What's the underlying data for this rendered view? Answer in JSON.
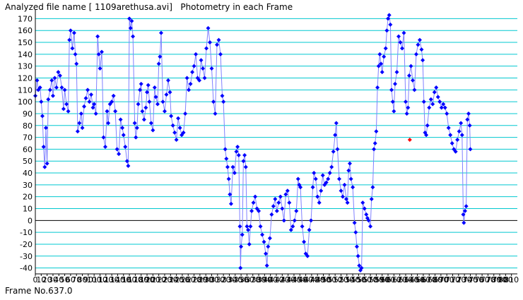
{
  "header": {
    "title": "Analyzed file name [ 1109arethusa.avi]   Photometry in each Frame"
  },
  "footer": {
    "frame_readout": "Frame No.637.0"
  },
  "colors": {
    "grid": "#00c8d0",
    "zero_line": "#000000",
    "series_line": "#8080ff",
    "marker": "#0000ff",
    "highlight_marker": "#ff0000",
    "axis": "#000000"
  },
  "chart_data": {
    "type": "scatter",
    "title": "",
    "xlabel": "",
    "ylabel": "",
    "xlim": [
      0,
      820
    ],
    "ylim": [
      -45,
      175
    ],
    "grid": true,
    "x_ticks": [
      0,
      10,
      20,
      30,
      40,
      50,
      60,
      70,
      80,
      90,
      100,
      110,
      120,
      130,
      140,
      150,
      160,
      170,
      180,
      190,
      200,
      210,
      220,
      230,
      240,
      250,
      260,
      270,
      280,
      290,
      300,
      310,
      320,
      330,
      340,
      350,
      360,
      370,
      380,
      390,
      400,
      410,
      420,
      430,
      440,
      450,
      460,
      470,
      480,
      490,
      500,
      510,
      520,
      530,
      540,
      550,
      560,
      570,
      580,
      590,
      600,
      610,
      620,
      630,
      640,
      650,
      660,
      670,
      680,
      690,
      700,
      710,
      720,
      730,
      740,
      750,
      760,
      770,
      780,
      790,
      800,
      810
    ],
    "y_ticks": [
      -40,
      -30,
      -20,
      -10,
      0,
      10,
      20,
      30,
      40,
      50,
      60,
      70,
      80,
      90,
      100,
      110,
      120,
      130,
      140,
      150,
      160,
      170
    ],
    "series": [
      {
        "points": [
          [
            0,
            105
          ],
          [
            3,
            118
          ],
          [
            5,
            110
          ],
          [
            8,
            112
          ],
          [
            10,
            100
          ],
          [
            12,
            88
          ],
          [
            14,
            62
          ],
          [
            16,
            45
          ],
          [
            18,
            78
          ],
          [
            20,
            48
          ],
          [
            22,
            102
          ],
          [
            25,
            110
          ],
          [
            28,
            118
          ],
          [
            30,
            105
          ],
          [
            33,
            120
          ],
          [
            36,
            112
          ],
          [
            39,
            125
          ],
          [
            42,
            122
          ],
          [
            45,
            112
          ],
          [
            48,
            94
          ],
          [
            50,
            110
          ],
          [
            53,
            98
          ],
          [
            56,
            92
          ],
          [
            58,
            152
          ],
          [
            60,
            160
          ],
          [
            63,
            145
          ],
          [
            66,
            158
          ],
          [
            68,
            140
          ],
          [
            70,
            132
          ],
          [
            72,
            75
          ],
          [
            75,
            82
          ],
          [
            78,
            90
          ],
          [
            80,
            78
          ],
          [
            83,
            96
          ],
          [
            86,
            103
          ],
          [
            89,
            110
          ],
          [
            92,
            100
          ],
          [
            95,
            106
          ],
          [
            98,
            95
          ],
          [
            100,
            98
          ],
          [
            103,
            90
          ],
          [
            106,
            155
          ],
          [
            108,
            140
          ],
          [
            110,
            128
          ],
          [
            113,
            142
          ],
          [
            116,
            70
          ],
          [
            119,
            62
          ],
          [
            122,
            92
          ],
          [
            124,
            82
          ],
          [
            127,
            98
          ],
          [
            130,
            100
          ],
          [
            133,
            105
          ],
          [
            136,
            92
          ],
          [
            139,
            60
          ],
          [
            142,
            56
          ],
          [
            145,
            85
          ],
          [
            148,
            78
          ],
          [
            150,
            72
          ],
          [
            153,
            62
          ],
          [
            156,
            50
          ],
          [
            158,
            46
          ],
          [
            160,
            170
          ],
          [
            162,
            162
          ],
          [
            164,
            168
          ],
          [
            166,
            155
          ],
          [
            169,
            82
          ],
          [
            171,
            70
          ],
          [
            173,
            78
          ],
          [
            175,
            98
          ],
          [
            178,
            110
          ],
          [
            180,
            115
          ],
          [
            182,
            92
          ],
          [
            185,
            85
          ],
          [
            188,
            95
          ],
          [
            190,
            108
          ],
          [
            192,
            114
          ],
          [
            194,
            100
          ],
          [
            197,
            82
          ],
          [
            200,
            76
          ],
          [
            203,
            112
          ],
          [
            205,
            104
          ],
          [
            208,
            98
          ],
          [
            210,
            132
          ],
          [
            212,
            138
          ],
          [
            214,
            158
          ],
          [
            217,
            100
          ],
          [
            220,
            92
          ],
          [
            223,
            106
          ],
          [
            226,
            118
          ],
          [
            229,
            108
          ],
          [
            231,
            88
          ],
          [
            234,
            80
          ],
          [
            237,
            74
          ],
          [
            240,
            68
          ],
          [
            243,
            86
          ],
          [
            246,
            78
          ],
          [
            249,
            72
          ],
          [
            252,
            74
          ],
          [
            255,
            90
          ],
          [
            258,
            120
          ],
          [
            261,
            110
          ],
          [
            264,
            115
          ],
          [
            267,
            125
          ],
          [
            270,
            130
          ],
          [
            273,
            140
          ],
          [
            276,
            120
          ],
          [
            279,
            118
          ],
          [
            282,
            135
          ],
          [
            285,
            128
          ],
          [
            288,
            120
          ],
          [
            291,
            145
          ],
          [
            294,
            162
          ],
          [
            297,
            150
          ],
          [
            300,
            128
          ],
          [
            303,
            100
          ],
          [
            306,
            90
          ],
          [
            309,
            148
          ],
          [
            312,
            152
          ],
          [
            315,
            140
          ],
          [
            318,
            105
          ],
          [
            320,
            100
          ],
          [
            323,
            60
          ],
          [
            325,
            52
          ],
          [
            327,
            45
          ],
          [
            329,
            35
          ],
          [
            331,
            22
          ],
          [
            333,
            14
          ],
          [
            336,
            45
          ],
          [
            339,
            40
          ],
          [
            342,
            58
          ],
          [
            344,
            62
          ],
          [
            346,
            55
          ],
          [
            348,
            -5
          ],
          [
            349,
            -40
          ],
          [
            350,
            -22
          ],
          [
            352,
            -12
          ],
          [
            354,
            50
          ],
          [
            356,
            55
          ],
          [
            358,
            45
          ],
          [
            360,
            -5
          ],
          [
            362,
            -8
          ],
          [
            364,
            -20
          ],
          [
            366,
            -5
          ],
          [
            368,
            8
          ],
          [
            371,
            15
          ],
          [
            374,
            20
          ],
          [
            377,
            10
          ],
          [
            380,
            8
          ],
          [
            383,
            -5
          ],
          [
            386,
            -12
          ],
          [
            389,
            -18
          ],
          [
            392,
            -28
          ],
          [
            394,
            -38
          ],
          [
            396,
            -22
          ],
          [
            399,
            -15
          ],
          [
            402,
            5
          ],
          [
            405,
            12
          ],
          [
            408,
            18
          ],
          [
            411,
            8
          ],
          [
            414,
            15
          ],
          [
            417,
            20
          ],
          [
            420,
            10
          ],
          [
            423,
            0
          ],
          [
            426,
            22
          ],
          [
            429,
            25
          ],
          [
            432,
            15
          ],
          [
            435,
            -8
          ],
          [
            438,
            -5
          ],
          [
            441,
            0
          ],
          [
            444,
            8
          ],
          [
            447,
            35
          ],
          [
            449,
            30
          ],
          [
            451,
            28
          ],
          [
            454,
            -5
          ],
          [
            457,
            -18
          ],
          [
            460,
            -28
          ],
          [
            463,
            -30
          ],
          [
            466,
            -8
          ],
          [
            469,
            0
          ],
          [
            472,
            28
          ],
          [
            474,
            40
          ],
          [
            477,
            35
          ],
          [
            480,
            20
          ],
          [
            483,
            15
          ],
          [
            486,
            25
          ],
          [
            489,
            38
          ],
          [
            492,
            30
          ],
          [
            495,
            32
          ],
          [
            498,
            35
          ],
          [
            501,
            40
          ],
          [
            504,
            45
          ],
          [
            507,
            58
          ],
          [
            510,
            72
          ],
          [
            512,
            82
          ],
          [
            514,
            60
          ],
          [
            517,
            35
          ],
          [
            520,
            25
          ],
          [
            523,
            20
          ],
          [
            526,
            30
          ],
          [
            529,
            18
          ],
          [
            531,
            15
          ],
          [
            533,
            42
          ],
          [
            535,
            48
          ],
          [
            537,
            35
          ],
          [
            540,
            28
          ],
          [
            543,
            -2
          ],
          [
            545,
            -10
          ],
          [
            547,
            -22
          ],
          [
            549,
            -30
          ],
          [
            551,
            -38
          ],
          [
            553,
            -42
          ],
          [
            555,
            -40
          ],
          [
            557,
            15
          ],
          [
            560,
            10
          ],
          [
            563,
            5
          ],
          [
            565,
            2
          ],
          [
            567,
            0
          ],
          [
            570,
            -5
          ],
          [
            572,
            18
          ],
          [
            574,
            28
          ],
          [
            576,
            60
          ],
          [
            578,
            65
          ],
          [
            580,
            75
          ],
          [
            582,
            112
          ],
          [
            584,
            130
          ],
          [
            586,
            140
          ],
          [
            588,
            132
          ],
          [
            590,
            125
          ],
          [
            593,
            138
          ],
          [
            596,
            145
          ],
          [
            598,
            160
          ],
          [
            600,
            170
          ],
          [
            602,
            173
          ],
          [
            604,
            165
          ],
          [
            606,
            110
          ],
          [
            608,
            100
          ],
          [
            610,
            92
          ],
          [
            612,
            115
          ],
          [
            615,
            125
          ],
          [
            618,
            155
          ],
          [
            621,
            150
          ],
          [
            624,
            145
          ],
          [
            627,
            158
          ],
          [
            630,
            100
          ],
          [
            632,
            90
          ],
          [
            634,
            95
          ],
          [
            636,
            122
          ],
          [
            639,
            130
          ],
          [
            642,
            118
          ],
          [
            645,
            110
          ],
          [
            648,
            140
          ],
          [
            651,
            148
          ],
          [
            654,
            152
          ],
          [
            657,
            144
          ],
          [
            659,
            135
          ],
          [
            661,
            100
          ],
          [
            663,
            74
          ],
          [
            665,
            72
          ],
          [
            667,
            80
          ],
          [
            670,
            95
          ],
          [
            673,
            102
          ],
          [
            676,
            98
          ],
          [
            679,
            108
          ],
          [
            682,
            112
          ],
          [
            685,
            104
          ],
          [
            688,
            100
          ],
          [
            691,
            95
          ],
          [
            694,
            98
          ],
          [
            697,
            95
          ],
          [
            700,
            90
          ],
          [
            703,
            78
          ],
          [
            706,
            72
          ],
          [
            709,
            65
          ],
          [
            712,
            60
          ],
          [
            715,
            58
          ],
          [
            718,
            68
          ],
          [
            721,
            75
          ],
          [
            724,
            82
          ],
          [
            726,
            72
          ],
          [
            728,
            5
          ],
          [
            729,
            -2
          ],
          [
            731,
            8
          ],
          [
            733,
            12
          ],
          [
            735,
            85
          ],
          [
            737,
            90
          ],
          [
            739,
            80
          ],
          [
            740,
            60
          ]
        ],
        "highlight": [
          637,
          68
        ]
      }
    ]
  }
}
